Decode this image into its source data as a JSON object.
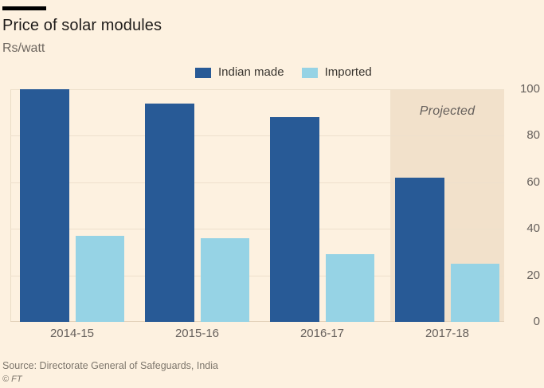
{
  "header": {
    "title": "Price of solar modules",
    "subtitle": "Rs/watt"
  },
  "legend": [
    {
      "label": "Indian made",
      "color": "#285a96"
    },
    {
      "label": "Imported",
      "color": "#96d3e5"
    }
  ],
  "annotations": {
    "projected_label": "Projected"
  },
  "footer": {
    "source": "Source: Directorate General of Safeguards, India",
    "copyright": "© FT"
  },
  "colors": {
    "background": "#fdf1e0",
    "projected_band": "#f2e1cb",
    "indian_made": "#285a96",
    "imported": "#96d3e5",
    "gridline": "#eee0cc",
    "baseline": "#e3d2bb",
    "plot_edge": "#eadcc6",
    "title_text": "#1f1c1a",
    "subtitle_text": "#6e6760",
    "legend_text": "#3a3630",
    "axis_text": "#66605c",
    "projected_text": "#66605c",
    "source_text": "#7d766c",
    "top_rule": "#000000"
  },
  "chart_data": {
    "type": "bar",
    "categories": [
      "2014-15",
      "2015-16",
      "2016-17",
      "2017-18"
    ],
    "series": [
      {
        "name": "Indian made",
        "color_key": "indian_made",
        "values": [
          100,
          94,
          88,
          62
        ]
      },
      {
        "name": "Imported",
        "color_key": "imported",
        "values": [
          37,
          36,
          29,
          25
        ]
      }
    ],
    "title": "Price of solar modules",
    "xlabel": "",
    "ylabel": "Rs/watt",
    "ylim": [
      0,
      100
    ],
    "yticks": [
      0,
      20,
      40,
      60,
      80,
      100
    ],
    "grid": true,
    "legend_position": "top",
    "projected_categories": [
      "2017-18"
    ]
  }
}
